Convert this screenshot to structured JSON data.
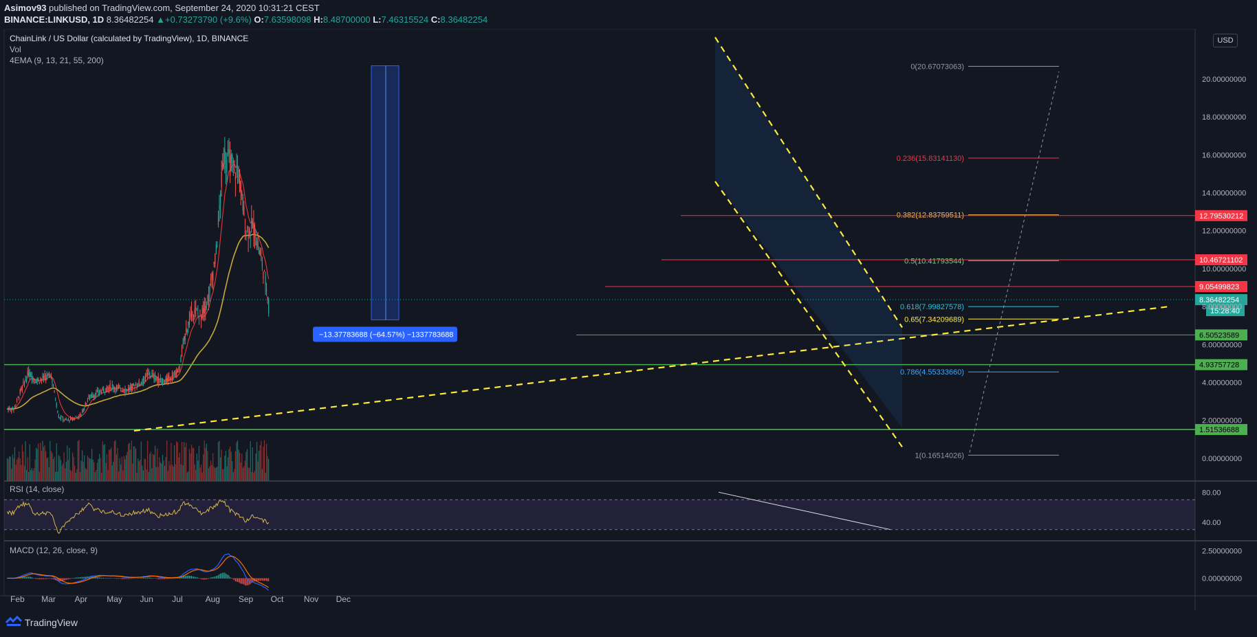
{
  "header": {
    "publisher": "Asimov93",
    "published_text": "published on TradingView.com, September 24, 2020 10:31:21 CEST",
    "symbol": "BINANCE:LINKUSD, 1D",
    "last": "8.36482254",
    "change": "+0.73273790 (+9.6%)",
    "o_label": "O:",
    "o": "7.63598098",
    "h_label": "H:",
    "h": "8.48700000",
    "l_label": "L:",
    "l": "7.46315524",
    "c_label": "C:",
    "c": "8.36482254"
  },
  "legend": {
    "title": "ChainLink / US Dollar (calculated by TradingView), 1D, BINANCE",
    "vol": "Vol",
    "ema": "4EMA (9, 13, 21, 55, 200)"
  },
  "currency_button": "USD",
  "footer": {
    "brand": "TradingView"
  },
  "colors": {
    "background": "#131722",
    "up": "#26a69a",
    "down": "#ef5350",
    "ema_fast": "#e53935",
    "ema_slow": "#c9a83b",
    "trendline": "#ffeb3b",
    "support": "#4caf50",
    "resistance": "#f23645",
    "rsi": "#d6b94a",
    "macd": "#2962ff",
    "signal": "#ff6d00"
  },
  "chart_data": {
    "type": "candlestick",
    "title": "ChainLink / US Dollar (calculated by TradingView), 1D, BINANCE",
    "ylim": [
      -1.2,
      22.5
    ],
    "y_ticks": [
      "20.00000000",
      "18.00000000",
      "16.00000000",
      "14.00000000",
      "12.00000000",
      "10.00000000",
      "8.00000000",
      "6.00000000",
      "4.00000000",
      "2.00000000",
      "0.00000000"
    ],
    "x_ticks": [
      "Feb",
      "Mar",
      "Apr",
      "May",
      "Jun",
      "Jul",
      "Aug",
      "Sep",
      "Oct",
      "Nov",
      "Dec"
    ],
    "weekly_close_approx": [
      {
        "date": "2020-01-27",
        "close": 2.6
      },
      {
        "date": "2020-02-03",
        "close": 3.6
      },
      {
        "date": "2020-02-10",
        "close": 4.5
      },
      {
        "date": "2020-02-17",
        "close": 4.1
      },
      {
        "date": "2020-02-24",
        "close": 4.2
      },
      {
        "date": "2020-03-02",
        "close": 4.4
      },
      {
        "date": "2020-03-09",
        "close": 2.2
      },
      {
        "date": "2020-03-16",
        "close": 2.0
      },
      {
        "date": "2020-03-23",
        "close": 2.1
      },
      {
        "date": "2020-03-30",
        "close": 2.3
      },
      {
        "date": "2020-04-06",
        "close": 3.2
      },
      {
        "date": "2020-04-13",
        "close": 3.4
      },
      {
        "date": "2020-04-20",
        "close": 3.6
      },
      {
        "date": "2020-04-27",
        "close": 3.8
      },
      {
        "date": "2020-05-04",
        "close": 3.7
      },
      {
        "date": "2020-05-11",
        "close": 3.6
      },
      {
        "date": "2020-05-18",
        "close": 3.8
      },
      {
        "date": "2020-05-25",
        "close": 4.0
      },
      {
        "date": "2020-06-01",
        "close": 4.5
      },
      {
        "date": "2020-06-08",
        "close": 4.2
      },
      {
        "date": "2020-06-15",
        "close": 4.0
      },
      {
        "date": "2020-06-22",
        "close": 4.3
      },
      {
        "date": "2020-06-29",
        "close": 4.6
      },
      {
        "date": "2020-07-06",
        "close": 6.8
      },
      {
        "date": "2020-07-13",
        "close": 7.8
      },
      {
        "date": "2020-07-20",
        "close": 7.5
      },
      {
        "date": "2020-07-27",
        "close": 8.5
      },
      {
        "date": "2020-08-03",
        "close": 10.8
      },
      {
        "date": "2020-08-10",
        "close": 16.0
      },
      {
        "date": "2020-08-17",
        "close": 15.5
      },
      {
        "date": "2020-08-24",
        "close": 15.0
      },
      {
        "date": "2020-08-31",
        "close": 12.0
      },
      {
        "date": "2020-09-07",
        "close": 12.2
      },
      {
        "date": "2020-09-14",
        "close": 10.5
      },
      {
        "date": "2020-09-21",
        "close": 8.36
      }
    ],
    "fibonacci": [
      {
        "label": "0(20.67073063)",
        "value": 20.67073063
      },
      {
        "label": "0.236(15.83141130)",
        "value": 15.8314113
      },
      {
        "label": "0.382(12.83759511)",
        "value": 12.83759511
      },
      {
        "label": "0.5(10.41793544)",
        "value": 10.41793544
      },
      {
        "label": "0.618(7.99827578)",
        "value": 7.99827578
      },
      {
        "label": "0.65(7.34209689)",
        "value": 7.34209689
      },
      {
        "label": "0.786(4.55333660)",
        "value": 4.5533366
      },
      {
        "label": "1(0.16514026)",
        "value": 0.16514026
      }
    ],
    "horizontal_levels": [
      {
        "label": "12.79530212",
        "value": 12.79530212,
        "kind": "resistance"
      },
      {
        "label": "10.46721102",
        "value": 10.46721102,
        "kind": "resistance"
      },
      {
        "label": "9.05499823",
        "value": 9.05499823,
        "kind": "resistance"
      },
      {
        "label": "6.50523589",
        "value": 6.50523589,
        "kind": "support"
      },
      {
        "label": "4.93757728",
        "value": 4.93757728,
        "kind": "support"
      },
      {
        "label": "1.51536688",
        "value": 1.51536688,
        "kind": "support"
      }
    ],
    "last_price": {
      "label": "8.36482254",
      "value": 8.36482254,
      "countdown": "15:28:40"
    },
    "measure": {
      "label": "−13.37783688 (−64.57%) −1337783688",
      "from": 20.7,
      "to": 7.3
    },
    "rsi": {
      "title": "RSI (14, close)",
      "ticks": [
        "80.00",
        "40.00"
      ],
      "bands": [
        70,
        30
      ],
      "ylim": [
        15,
        95
      ]
    },
    "macd": {
      "title": "MACD (12, 26, close, 9)",
      "ticks": [
        "2.50000000",
        "0.00000000"
      ],
      "ylim": [
        -1.6,
        3.4
      ]
    }
  }
}
